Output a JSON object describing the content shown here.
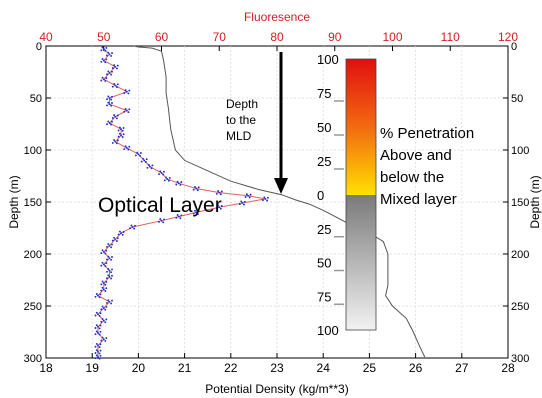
{
  "chart_data": {
    "type": "line",
    "top_axis": {
      "label": "Fluoresence",
      "range": [
        40,
        120
      ],
      "ticks": [
        "40",
        "50",
        "60",
        "70",
        "80",
        "90",
        "100",
        "110",
        "120"
      ],
      "color": "#d42020"
    },
    "bottom_axis": {
      "label": "Potential Density (kg/m**3)",
      "range": [
        18,
        28
      ],
      "ticks": [
        "18",
        "19",
        "20",
        "21",
        "22",
        "23",
        "24",
        "25",
        "26",
        "27",
        "28"
      ]
    },
    "left_axis": {
      "label": "Depth (m)",
      "range": [
        0,
        300
      ],
      "ticks": [
        "0",
        "50",
        "100",
        "150",
        "200",
        "250",
        "300"
      ]
    },
    "right_axis": {
      "label": "Depth (m)",
      "ticks": [
        "0",
        "50",
        "100",
        "150",
        "200",
        "250",
        "300"
      ]
    },
    "series": [
      {
        "kind": "fluorescence-line-with-points",
        "axis": "top",
        "line_color": "#e06060",
        "point_color": "#1f2fd0",
        "points": [
          [
            50,
            3
          ],
          [
            51,
            8
          ],
          [
            50,
            14
          ],
          [
            52,
            20
          ],
          [
            51,
            26
          ],
          [
            50,
            32
          ],
          [
            52,
            38
          ],
          [
            54,
            44
          ],
          [
            51,
            50
          ],
          [
            51,
            56
          ],
          [
            54,
            62
          ],
          [
            52,
            68
          ],
          [
            51,
            74
          ],
          [
            53,
            80
          ],
          [
            53,
            86
          ],
          [
            52,
            92
          ],
          [
            54,
            98
          ],
          [
            56,
            104
          ],
          [
            57,
            110
          ],
          [
            58,
            116
          ],
          [
            60,
            122
          ],
          [
            61,
            128
          ],
          [
            63,
            132
          ],
          [
            66,
            137
          ],
          [
            70,
            141
          ],
          [
            75,
            144
          ],
          [
            78,
            147
          ],
          [
            74,
            151
          ],
          [
            70,
            155
          ],
          [
            66,
            160
          ],
          [
            63,
            164
          ],
          [
            60,
            168
          ],
          [
            55,
            174
          ],
          [
            53,
            180
          ],
          [
            52,
            186
          ],
          [
            51,
            192
          ],
          [
            50,
            198
          ],
          [
            51,
            204
          ],
          [
            50,
            210
          ],
          [
            51,
            216
          ],
          [
            51,
            222
          ],
          [
            50,
            228
          ],
          [
            50,
            234
          ],
          [
            49,
            240
          ],
          [
            51,
            246
          ],
          [
            50,
            252
          ],
          [
            49,
            258
          ],
          [
            50,
            264
          ],
          [
            49,
            270
          ],
          [
            49,
            276
          ],
          [
            50,
            282
          ],
          [
            49,
            288
          ],
          [
            49,
            294
          ],
          [
            49,
            299
          ]
        ]
      },
      {
        "kind": "density-line",
        "axis": "bottom",
        "line_color": "#555555",
        "points": [
          [
            19.9,
            0
          ],
          [
            20.0,
            1
          ],
          [
            20.3,
            2
          ],
          [
            20.5,
            5
          ],
          [
            20.55,
            15
          ],
          [
            20.6,
            30
          ],
          [
            20.6,
            45
          ],
          [
            20.65,
            60
          ],
          [
            20.7,
            80
          ],
          [
            20.8,
            100
          ],
          [
            21.0,
            110
          ],
          [
            21.5,
            120
          ],
          [
            22.0,
            130
          ],
          [
            22.6,
            138
          ],
          [
            23.1,
            143
          ],
          [
            23.4,
            148
          ],
          [
            23.7,
            152
          ],
          [
            24.0,
            158
          ],
          [
            24.3,
            165
          ],
          [
            24.6,
            172
          ],
          [
            25.0,
            180
          ],
          [
            25.3,
            188
          ],
          [
            25.4,
            200
          ],
          [
            25.4,
            215
          ],
          [
            25.4,
            230
          ],
          [
            25.35,
            240
          ],
          [
            25.5,
            250
          ],
          [
            25.8,
            262
          ],
          [
            25.95,
            275
          ],
          [
            26.1,
            290
          ],
          [
            26.2,
            299
          ]
        ]
      }
    ],
    "annotations": {
      "optical_layer": "Optical Layer",
      "depth_label_lines": [
        "Depth",
        "to the",
        "MLD"
      ],
      "penetration_lines": [
        "% Penetration",
        "Above and",
        "below the",
        "Mixed layer"
      ],
      "mld_depth": 140
    },
    "colorbar": {
      "upper_labels": [
        "100",
        "75",
        "50",
        "25",
        "0"
      ],
      "lower_labels": [
        "25",
        "50",
        "75",
        "100"
      ],
      "colors": {
        "top": "#e01010",
        "orange": "#f26a10",
        "yellow": "#ffe000",
        "gray": "#7a7a7a",
        "light": "#f2f2f2"
      }
    }
  }
}
